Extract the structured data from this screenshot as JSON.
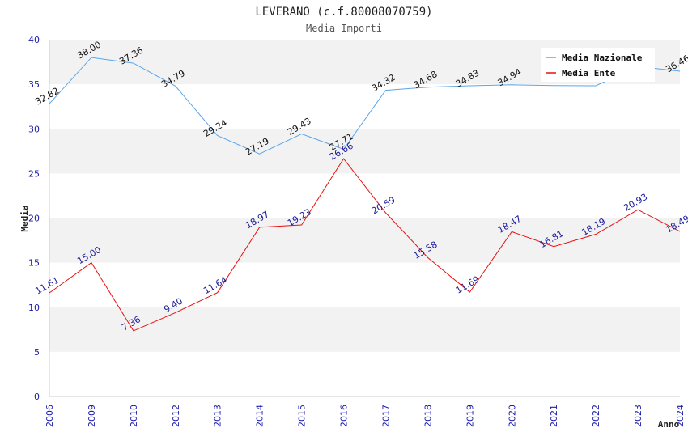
{
  "chart_data": {
    "type": "line",
    "title": "LEVERANO (c.f.80008070759)",
    "subtitle": "Media Importi",
    "xlabel": "Anno",
    "ylabel": "Media",
    "ylim": [
      0,
      40
    ],
    "yticks": [
      0,
      5,
      10,
      15,
      20,
      25,
      30,
      35,
      40
    ],
    "categories": [
      "2006",
      "2009",
      "2010",
      "2012",
      "2013",
      "2014",
      "2015",
      "2016",
      "2017",
      "2018",
      "2019",
      "2020",
      "2021",
      "2022",
      "2023",
      "2024"
    ],
    "legend_position": "top-right",
    "series": [
      {
        "name": "Media Nazionale",
        "color": "#5aa5e8",
        "values": [
          32.82,
          38.0,
          37.36,
          34.79,
          29.24,
          27.19,
          29.43,
          27.71,
          34.32,
          34.68,
          34.83,
          34.94,
          34.85,
          34.83,
          37.0,
          36.46
        ],
        "labels": [
          "32.82",
          "38.00",
          "37.36",
          "34.79",
          "29.24",
          "27.19",
          "29.43",
          "27.71",
          "34.32",
          "34.68",
          "34.83",
          "34.94",
          "",
          "",
          "",
          "36.46"
        ]
      },
      {
        "name": "Media Ente",
        "color": "#e81010",
        "values": [
          11.61,
          15.0,
          7.36,
          9.4,
          11.64,
          18.97,
          19.23,
          26.66,
          20.59,
          15.58,
          11.69,
          18.47,
          16.81,
          18.19,
          20.93,
          18.49
        ],
        "labels": [
          "11.61",
          "15.00",
          "7.36",
          "9.40",
          "11.64",
          "18.97",
          "19.23",
          "26.66",
          "20.59",
          "15.58",
          "11.69",
          "18.47",
          "16.81",
          "18.19",
          "20.93",
          "18.49"
        ]
      }
    ]
  }
}
